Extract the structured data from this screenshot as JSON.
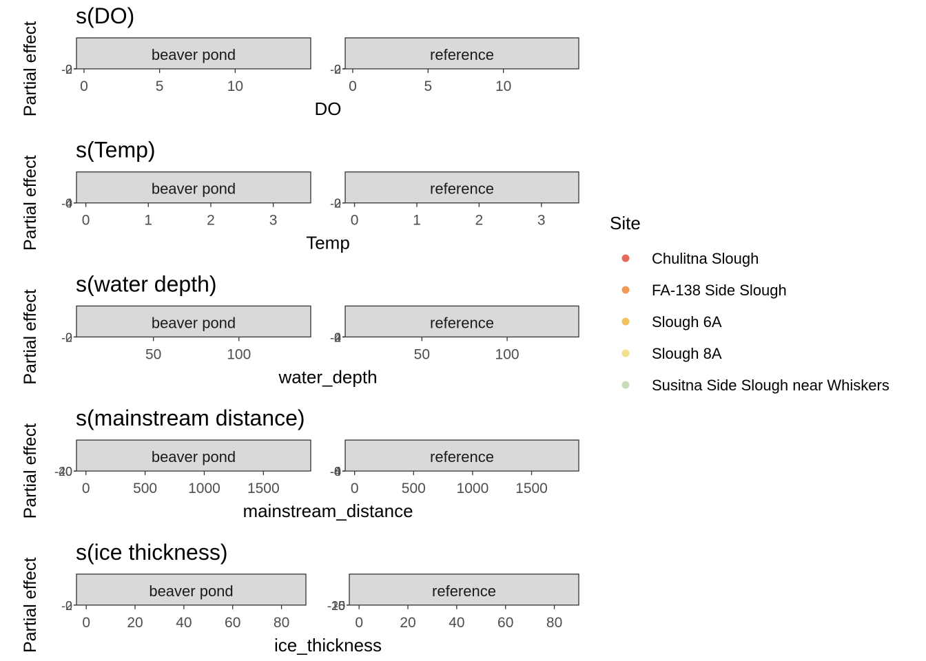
{
  "chart_data": [
    {
      "type": "scatter",
      "title": "s(DO)",
      "ylabel": "Partial effect",
      "xlabel": "DO",
      "xlim": [
        -0.5,
        15
      ],
      "xticks": [
        0,
        5,
        10
      ],
      "panels": [
        {
          "strip": "beaver pond",
          "yticks": [
            "-2",
            "0",
            "2"
          ]
        },
        {
          "strip": "reference",
          "yticks": [
            "-2",
            "0",
            "2"
          ]
        }
      ]
    },
    {
      "type": "scatter",
      "title": "s(Temp)",
      "ylabel": "Partial effect",
      "xlabel": "Temp",
      "xlim": [
        -0.15,
        3.6
      ],
      "xticks": [
        0,
        1,
        2,
        3
      ],
      "panels": [
        {
          "strip": "beaver pond",
          "yticks": [
            "-4",
            "0",
            "4"
          ]
        },
        {
          "strip": "reference",
          "yticks": [
            "-2",
            "0",
            "2"
          ]
        }
      ]
    },
    {
      "type": "scatter",
      "title": "s(water depth)",
      "ylabel": "Partial effect",
      "xlabel": "water_depth",
      "xlim": [
        5,
        142
      ],
      "xticks": [
        50,
        100
      ],
      "panels": [
        {
          "strip": "beaver pond",
          "yticks": [
            "-2",
            "0"
          ]
        },
        {
          "strip": "reference",
          "yticks": [
            "-4",
            "-2",
            "0",
            "2"
          ]
        }
      ]
    },
    {
      "type": "scatter",
      "title": "s(mainstream distance)",
      "ylabel": "Partial effect",
      "xlabel": "mainstream_distance",
      "xlim": [
        -80,
        1900
      ],
      "xticks": [
        0,
        500,
        1000,
        1500
      ],
      "panels": [
        {
          "strip": "beaver pond",
          "yticks": [
            "-40",
            "-20",
            "0"
          ]
        },
        {
          "strip": "reference",
          "yticks": [
            "-8",
            "-4",
            "0",
            "4"
          ]
        }
      ]
    },
    {
      "type": "scatter",
      "title": "s(ice thickness)",
      "ylabel": "Partial effect",
      "xlabel": "ice_thickness",
      "xlim": [
        -4,
        90
      ],
      "xticks": [
        0,
        20,
        40,
        60,
        80
      ],
      "panels": [
        {
          "strip": "beaver pond",
          "yticks": [
            "-2",
            "0"
          ]
        },
        {
          "strip": "reference",
          "yticks": [
            "-20",
            "-15",
            "-10",
            "-5",
            "0"
          ]
        }
      ]
    }
  ],
  "legend": {
    "title": "Site",
    "placement": "right",
    "items": [
      {
        "label": "Chulitna Slough",
        "color": "#e8695b"
      },
      {
        "label": "FA-138 Side Slough",
        "color": "#f39a58"
      },
      {
        "label": "Slough 6A",
        "color": "#f0c25c"
      },
      {
        "label": "Slough 8A",
        "color": "#f3e08a"
      },
      {
        "label": "Susitna Side Slough near Whiskers",
        "color": "#c9dcb8"
      }
    ]
  }
}
